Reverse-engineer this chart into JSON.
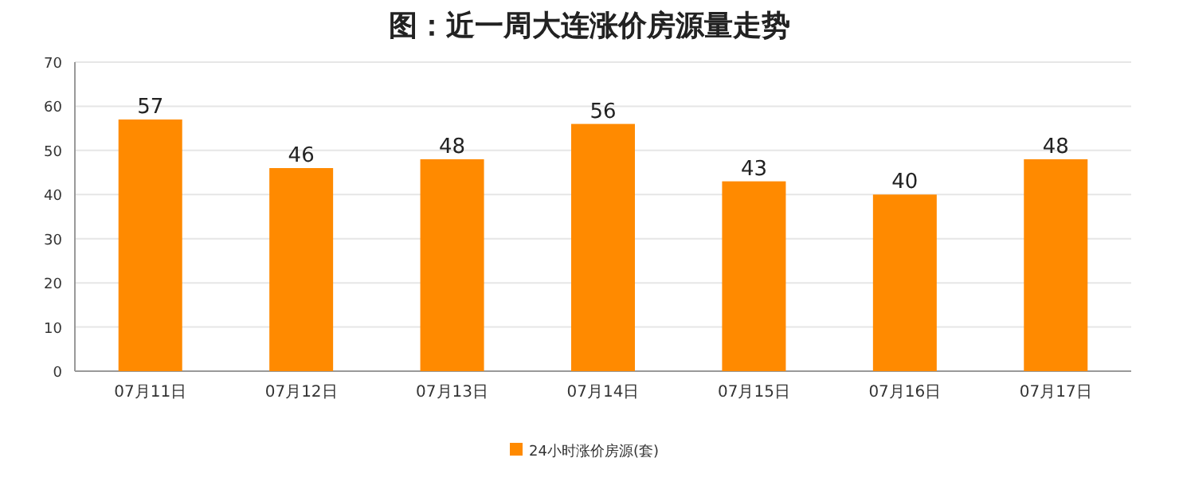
{
  "chart_data": {
    "type": "bar",
    "title": "图：近一周大连涨价房源量走势",
    "categories": [
      "07月11日",
      "07月12日",
      "07月13日",
      "07月14日",
      "07月15日",
      "07月16日",
      "07月17日"
    ],
    "series": [
      {
        "name": "24小时涨价房源(套)",
        "color": "#ff8a00",
        "values": [
          57,
          46,
          48,
          56,
          43,
          40,
          48
        ]
      }
    ],
    "ylim": [
      0,
      70
    ],
    "yticks": [
      0,
      10,
      20,
      30,
      40,
      50,
      60,
      70
    ],
    "grid": "y",
    "legend": "bottom",
    "data_labels": true
  }
}
